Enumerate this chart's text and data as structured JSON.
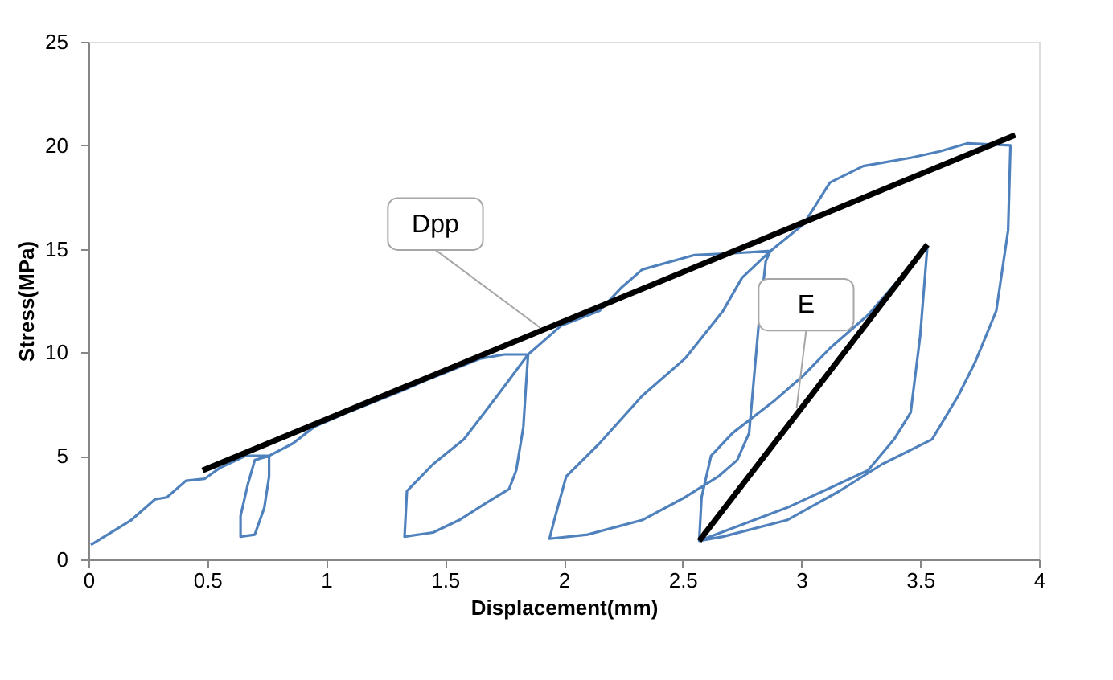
{
  "chart_data": {
    "type": "line",
    "xlabel": "Displacement(mm)",
    "ylabel": "Stress(MPa)",
    "xlim": [
      0,
      4
    ],
    "xticks": [
      0,
      0.5,
      1,
      1.5,
      2,
      2.5,
      3,
      3.5,
      4
    ],
    "ylim": [
      0,
      25
    ],
    "yticks": [
      0,
      5,
      10,
      15,
      20,
      25
    ],
    "grid": false,
    "marker": "none",
    "line_style": "solid",
    "series": [
      {
        "color": "#4f81bd",
        "x": [
          0.01,
          0.18,
          0.28,
          0.33,
          0.41,
          0.49,
          0.55,
          0.66,
          0.76,
          0.76,
          0.74,
          0.7,
          0.64,
          0.64,
          0.67,
          0.7,
          0.76,
          0.86,
          0.95,
          1.09,
          1.31,
          1.43,
          1.65,
          1.75,
          1.85,
          1.84,
          1.83,
          1.8,
          1.77,
          1.67,
          1.56,
          1.45,
          1.33,
          1.34,
          1.45,
          1.58,
          1.72,
          1.85,
          1.99,
          2.15,
          2.24,
          2.33,
          2.55,
          2.73,
          2.87,
          2.85,
          2.82,
          2.8,
          2.78,
          2.73,
          2.65,
          2.51,
          2.33,
          2.1,
          1.94,
          1.96,
          2.01,
          2.15,
          2.33,
          2.51,
          2.67,
          2.75,
          2.87,
          3.01,
          3.12,
          3.26,
          3.46,
          3.58,
          3.7,
          3.88,
          3.87,
          3.82,
          3.73,
          3.66,
          3.55,
          3.34,
          3.16,
          2.94,
          2.67,
          2.57,
          2.94,
          3.28,
          3.39,
          3.46,
          3.5,
          3.53,
          3.28,
          3.12,
          3.01,
          2.89,
          2.71,
          2.62,
          2.58,
          2.57
        ],
        "values": [
          0.7,
          1.9,
          2.9,
          3.0,
          3.8,
          3.9,
          4.4,
          5.0,
          5.0,
          4.0,
          2.5,
          1.2,
          1.1,
          2.1,
          3.6,
          4.8,
          5.0,
          5.6,
          6.4,
          7.1,
          8.1,
          8.7,
          9.7,
          9.9,
          9.9,
          8.2,
          6.4,
          4.3,
          3.4,
          2.7,
          1.9,
          1.3,
          1.1,
          3.3,
          4.6,
          5.8,
          7.9,
          9.9,
          11.3,
          12.0,
          13.1,
          14.0,
          14.7,
          14.8,
          14.9,
          14.4,
          11.3,
          8.7,
          6.1,
          4.8,
          4.0,
          3.0,
          1.9,
          1.2,
          1.0,
          1.9,
          4.0,
          5.6,
          7.9,
          9.7,
          12.0,
          13.6,
          14.9,
          16.2,
          18.2,
          19.0,
          19.4,
          19.7,
          20.1,
          20.0,
          15.9,
          12.0,
          9.5,
          7.9,
          5.8,
          4.6,
          3.3,
          1.9,
          1.1,
          0.9,
          2.5,
          4.3,
          5.8,
          7.1,
          10.8,
          15.1,
          11.8,
          10.2,
          8.9,
          7.7,
          6.1,
          5.0,
          3.0,
          0.9
        ]
      },
      {
        "color": "#000000",
        "x": [
          0.48,
          3.9
        ],
        "values": [
          4.3,
          20.5
        ]
      },
      {
        "color": "#000000",
        "x": [
          2.57,
          3.53
        ],
        "values": [
          0.9,
          15.2
        ]
      }
    ],
    "annotations": [
      {
        "text": "Dpp",
        "x": 1.9,
        "y": 11.2
      },
      {
        "text": "E",
        "x": 2.98,
        "y": 7.3
      }
    ]
  }
}
